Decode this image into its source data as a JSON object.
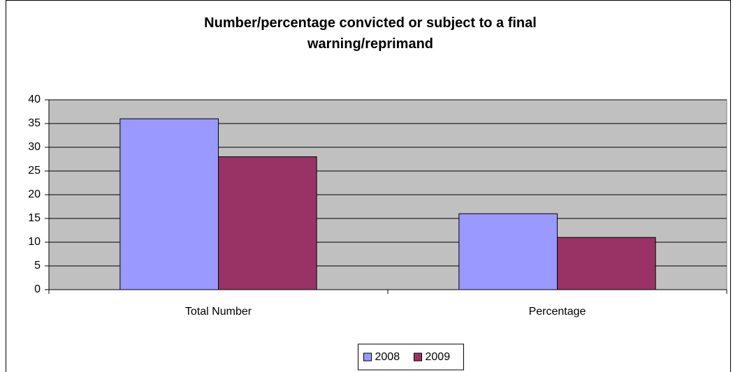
{
  "chart_data": {
    "type": "bar",
    "title": "Number/percentage convicted or subject to a final warning/reprimand",
    "categories": [
      "Total Number",
      "Percentage"
    ],
    "series": [
      {
        "name": "2008",
        "color": "#9999FF",
        "values": [
          36,
          16
        ]
      },
      {
        "name": "2009",
        "color": "#993366",
        "values": [
          28,
          11
        ]
      }
    ],
    "ylim": [
      0,
      40
    ],
    "yticks": [
      0,
      5,
      10,
      15,
      20,
      25,
      30,
      35,
      40
    ],
    "grid": true,
    "plot_background": "#C0C0C0",
    "legend": "bottom"
  }
}
